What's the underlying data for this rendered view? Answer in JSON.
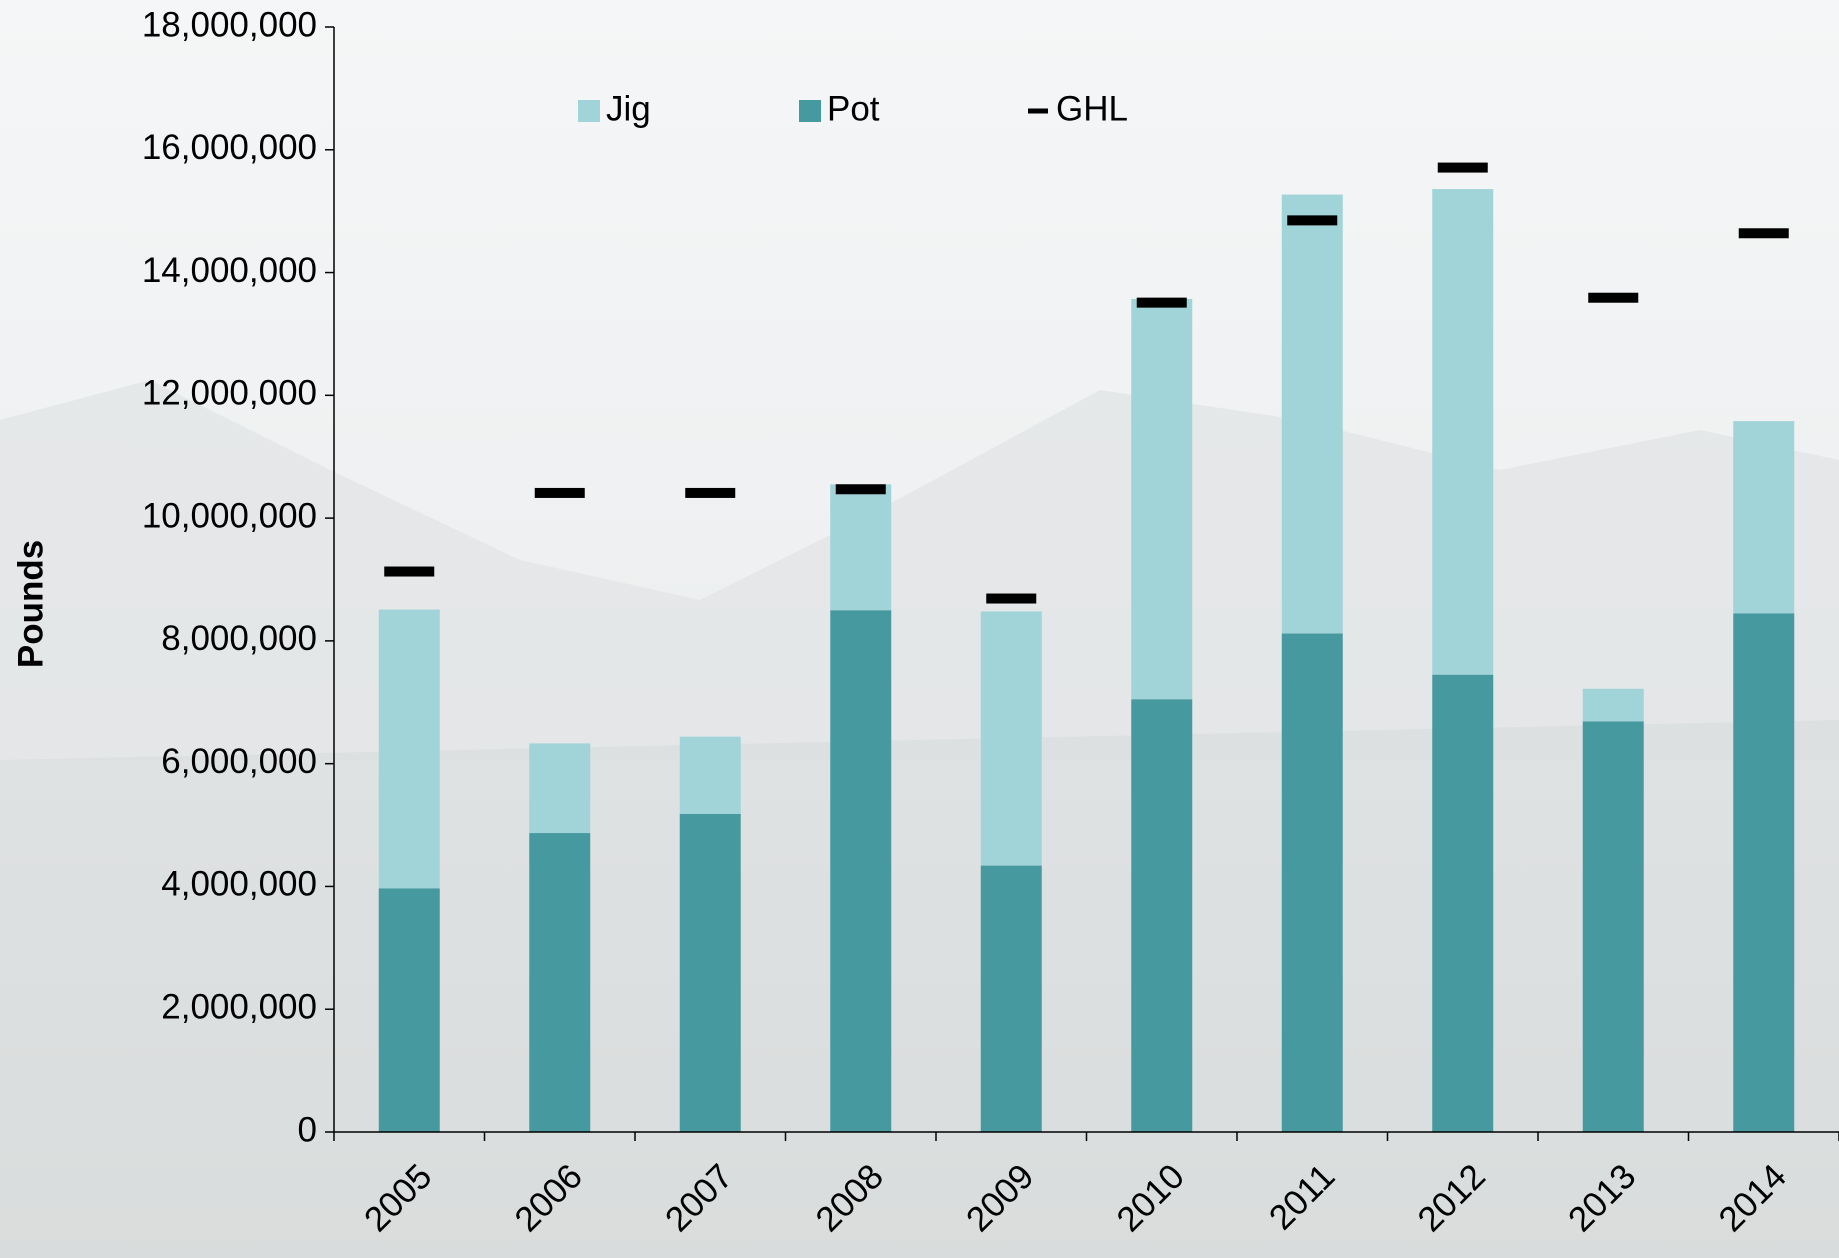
{
  "chart_data": {
    "type": "bar",
    "stacked": true,
    "y_label": "Pounds",
    "categories": [
      "2005",
      "2006",
      "2007",
      "2008",
      "2009",
      "2010",
      "2011",
      "2012",
      "2013",
      "2014"
    ],
    "series": [
      {
        "name": "Jig",
        "color": "#a0d4d8",
        "values": [
          4540000,
          1460000,
          1260000,
          2050000,
          4140000,
          6520000,
          7150000,
          7910000,
          530000,
          3130000
        ]
      },
      {
        "name": "Pot",
        "color": "#4799a0",
        "values": [
          3970000,
          4870000,
          5180000,
          8500000,
          4340000,
          7050000,
          8120000,
          7450000,
          6690000,
          8450000
        ]
      },
      {
        "name": "GHL",
        "type": "marker",
        "color": "#000000",
        "values": [
          9130000,
          10410000,
          10410000,
          10470000,
          8690000,
          13510000,
          14850000,
          15710000,
          13590000,
          14640000
        ]
      }
    ],
    "ylim": [
      0,
      18000000
    ],
    "yticks": [
      0,
      {
        "value": 2000000,
        "label": "2,000,000"
      },
      {
        "value": 4000000,
        "label": "4,000,000"
      },
      {
        "value": 6000000,
        "label": "6,000,000"
      },
      {
        "value": 8000000,
        "label": "8,000,000"
      },
      {
        "value": 10000000,
        "label": "10,000,000"
      },
      {
        "value": 12000000,
        "label": "12,000,000"
      },
      {
        "value": 14000000,
        "label": "14,000,000"
      },
      {
        "value": 16000000,
        "label": "16,000,000"
      },
      {
        "value": 18000000,
        "label": "18,000,000"
      }
    ],
    "grid": false
  }
}
